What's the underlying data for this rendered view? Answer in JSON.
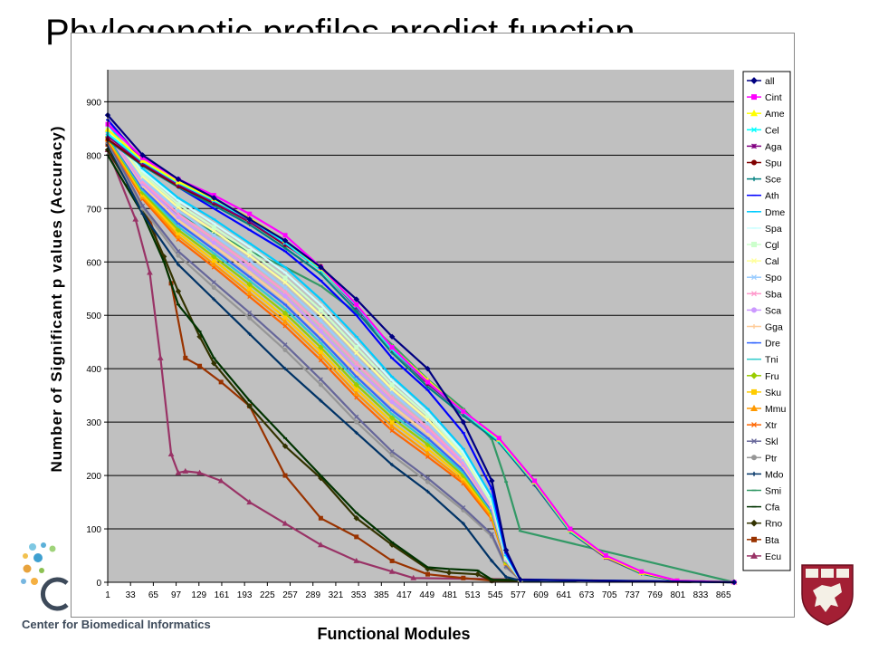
{
  "slide": {
    "title": "Phylogenetic profiles predict function",
    "footer_org": "Center for Biomedical Informatics"
  },
  "colors": {
    "plot_background": "#c0c0c0",
    "gridline": "#000000",
    "shield_red": "#a31f34"
  },
  "chart_data": {
    "type": "line",
    "title": "",
    "xlabel": "Functional Modules",
    "ylabel": "Number of Significant p values (Accuracy)",
    "ylim": [
      0,
      960
    ],
    "xlim": [
      1,
      880
    ],
    "yticks": [
      0,
      100,
      200,
      300,
      400,
      500,
      600,
      700,
      800,
      900
    ],
    "xticks": [
      1,
      33,
      65,
      97,
      129,
      161,
      193,
      225,
      257,
      289,
      321,
      353,
      385,
      417,
      449,
      481,
      513,
      545,
      577,
      609,
      641,
      673,
      705,
      737,
      769,
      801,
      833,
      865
    ],
    "grid": true,
    "legend_position": "right",
    "series": [
      {
        "name": "all",
        "color": "#000080",
        "marker": "diamond",
        "x": [
          1,
          50,
          100,
          150,
          200,
          250,
          300,
          350,
          400,
          450,
          500,
          540,
          560,
          580,
          880
        ],
        "y": [
          875,
          800,
          755,
          720,
          680,
          640,
          590,
          530,
          460,
          400,
          300,
          190,
          60,
          5,
          0
        ]
      },
      {
        "name": "Cint",
        "color": "#ff00ff",
        "marker": "square",
        "x": [
          1,
          50,
          100,
          150,
          200,
          250,
          300,
          350,
          400,
          450,
          500,
          550,
          600,
          650,
          700,
          750,
          800,
          880
        ],
        "y": [
          858,
          795,
          755,
          725,
          690,
          650,
          590,
          520,
          440,
          375,
          320,
          270,
          190,
          100,
          50,
          20,
          3,
          0
        ]
      },
      {
        "name": "Ame",
        "color": "#ffff00",
        "marker": "triangle",
        "x": [
          1,
          50,
          100,
          150,
          200,
          250,
          300,
          350,
          400,
          450,
          500,
          550,
          600,
          650,
          700,
          750,
          800,
          880
        ],
        "y": [
          848,
          790,
          750,
          718,
          682,
          640,
          588,
          520,
          440,
          378,
          320,
          268,
          188,
          98,
          48,
          18,
          3,
          0
        ]
      },
      {
        "name": "Cel",
        "color": "#00ffff",
        "marker": "x",
        "x": [
          1,
          50,
          100,
          150,
          200,
          250,
          300,
          350,
          400,
          450,
          500,
          550,
          600,
          650,
          700,
          750,
          800,
          880
        ],
        "y": [
          840,
          788,
          748,
          715,
          680,
          636,
          585,
          518,
          436,
          375,
          318,
          265,
          186,
          96,
          48,
          18,
          3,
          0
        ]
      },
      {
        "name": "Aga",
        "color": "#800080",
        "marker": "star",
        "x": [
          1,
          50,
          100,
          150,
          200,
          250,
          300,
          350,
          400,
          450,
          500,
          550,
          600,
          650,
          700,
          750,
          800,
          880
        ],
        "y": [
          836,
          785,
          745,
          712,
          676,
          634,
          586,
          515,
          438,
          372,
          317,
          266,
          184,
          96,
          46,
          18,
          3,
          0
        ]
      },
      {
        "name": "Spu",
        "color": "#800000",
        "marker": "circle",
        "x": [
          1,
          50,
          100,
          150,
          200,
          250,
          300,
          350,
          400,
          450,
          500,
          550,
          600,
          650,
          700,
          750,
          800,
          880
        ],
        "y": [
          830,
          782,
          742,
          710,
          675,
          632,
          592,
          518,
          436,
          372,
          318,
          268,
          188,
          98,
          48,
          18,
          3,
          0
        ]
      },
      {
        "name": "Sce",
        "color": "#008080",
        "marker": "plus",
        "x": [
          1,
          50,
          100,
          150,
          200,
          250,
          300,
          350,
          400,
          450,
          500,
          550,
          600,
          650,
          700,
          750,
          800,
          880
        ],
        "y": [
          828,
          780,
          740,
          706,
          670,
          626,
          578,
          508,
          430,
          366,
          312,
          262,
          182,
          94,
          46,
          16,
          2,
          0
        ]
      },
      {
        "name": "Ath",
        "color": "#0000ff",
        "marker": "dash",
        "x": [
          1,
          50,
          100,
          150,
          200,
          250,
          300,
          350,
          400,
          450,
          500,
          540,
          560,
          580,
          880
        ],
        "y": [
          866,
          790,
          740,
          700,
          660,
          620,
          565,
          500,
          420,
          360,
          280,
          175,
          55,
          5,
          0
        ]
      },
      {
        "name": "Dme",
        "color": "#00ccff",
        "marker": "dash",
        "x": [
          1,
          50,
          100,
          150,
          200,
          250,
          300,
          350,
          400,
          450,
          500,
          540,
          560,
          580,
          880
        ],
        "y": [
          858,
          775,
          720,
          680,
          635,
          590,
          530,
          460,
          385,
          325,
          250,
          160,
          50,
          5,
          0
        ]
      },
      {
        "name": "Spa",
        "color": "#ccffff",
        "marker": "dash",
        "x": [
          1,
          50,
          100,
          150,
          200,
          250,
          300,
          350,
          400,
          450,
          500,
          540,
          560,
          580,
          880
        ],
        "y": [
          855,
          770,
          715,
          672,
          628,
          580,
          520,
          450,
          378,
          318,
          244,
          155,
          48,
          5,
          0
        ]
      },
      {
        "name": "Cgl",
        "color": "#ccffcc",
        "marker": "square",
        "x": [
          1,
          50,
          100,
          150,
          200,
          250,
          300,
          350,
          400,
          450,
          500,
          540,
          560,
          580,
          880
        ],
        "y": [
          852,
          765,
          708,
          665,
          620,
          570,
          510,
          440,
          370,
          312,
          240,
          150,
          46,
          5,
          0
        ]
      },
      {
        "name": "Cal",
        "color": "#ffff99",
        "marker": "x",
        "x": [
          1,
          50,
          100,
          150,
          200,
          250,
          300,
          350,
          400,
          450,
          500,
          540,
          560,
          580,
          880
        ],
        "y": [
          850,
          760,
          702,
          658,
          612,
          562,
          500,
          430,
          362,
          305,
          235,
          148,
          45,
          5,
          0
        ]
      },
      {
        "name": "Spo",
        "color": "#99ccff",
        "marker": "x",
        "x": [
          1,
          50,
          100,
          150,
          200,
          250,
          300,
          350,
          400,
          450,
          500,
          540,
          560,
          580,
          880
        ],
        "y": [
          848,
          755,
          696,
          650,
          603,
          552,
          490,
          420,
          355,
          298,
          230,
          145,
          44,
          5,
          0
        ]
      },
      {
        "name": "Sba",
        "color": "#ff99cc",
        "marker": "x",
        "x": [
          1,
          50,
          100,
          150,
          200,
          250,
          300,
          350,
          400,
          450,
          500,
          540,
          560,
          580,
          880
        ],
        "y": [
          845,
          750,
          690,
          643,
          595,
          544,
          480,
          410,
          345,
          290,
          225,
          142,
          43,
          5,
          0
        ]
      },
      {
        "name": "Sca",
        "color": "#cc99ff",
        "marker": "circle",
        "x": [
          1,
          50,
          100,
          150,
          200,
          250,
          300,
          350,
          400,
          450,
          500,
          540,
          560,
          580,
          880
        ],
        "y": [
          842,
          746,
          684,
          636,
          588,
          536,
          470,
          400,
          338,
          284,
          220,
          140,
          42,
          5,
          0
        ]
      },
      {
        "name": "Gga",
        "color": "#ffcc99",
        "marker": "plus",
        "x": [
          1,
          50,
          100,
          150,
          200,
          250,
          300,
          350,
          400,
          450,
          500,
          540,
          560,
          580,
          880
        ],
        "y": [
          840,
          742,
          678,
          630,
          580,
          528,
          462,
          392,
          330,
          278,
          215,
          138,
          41,
          5,
          0
        ]
      },
      {
        "name": "Dre",
        "color": "#3366ff",
        "marker": "dash",
        "x": [
          1,
          50,
          100,
          150,
          200,
          250,
          300,
          350,
          400,
          450,
          500,
          540,
          560,
          580,
          880
        ],
        "y": [
          838,
          738,
          672,
          623,
          572,
          520,
          455,
          385,
          322,
          270,
          210,
          135,
          40,
          5,
          0
        ]
      },
      {
        "name": "Tni",
        "color": "#33cccc",
        "marker": "dash",
        "x": [
          1,
          50,
          100,
          150,
          200,
          250,
          300,
          350,
          400,
          450,
          500,
          540,
          560,
          580,
          880
        ],
        "y": [
          836,
          734,
          666,
          616,
          565,
          512,
          448,
          378,
          315,
          264,
          205,
          132,
          39,
          5,
          0
        ]
      },
      {
        "name": "Fru",
        "color": "#99cc00",
        "marker": "diamond",
        "x": [
          1,
          50,
          100,
          150,
          200,
          250,
          300,
          350,
          400,
          450,
          500,
          540,
          560,
          580,
          880
        ],
        "y": [
          834,
          730,
          660,
          610,
          558,
          504,
          440,
          370,
          308,
          258,
          200,
          130,
          38,
          5,
          0
        ]
      },
      {
        "name": "Sku",
        "color": "#ffcc00",
        "marker": "square",
        "x": [
          1,
          50,
          100,
          150,
          200,
          250,
          300,
          350,
          400,
          450,
          500,
          540,
          560,
          580,
          880
        ],
        "y": [
          832,
          726,
          654,
          603,
          550,
          496,
          432,
          362,
          300,
          250,
          195,
          126,
          37,
          5,
          0
        ]
      },
      {
        "name": "Mmu",
        "color": "#ff9900",
        "marker": "triangle",
        "x": [
          1,
          50,
          100,
          150,
          200,
          250,
          300,
          350,
          400,
          450,
          500,
          540,
          560,
          580,
          880
        ],
        "y": [
          830,
          722,
          648,
          596,
          542,
          488,
          424,
          354,
          292,
          242,
          190,
          122,
          36,
          5,
          0
        ]
      },
      {
        "name": "Xtr",
        "color": "#ff6600",
        "marker": "x",
        "x": [
          1,
          50,
          100,
          150,
          200,
          250,
          300,
          350,
          400,
          450,
          500,
          540,
          560,
          580,
          880
        ],
        "y": [
          828,
          718,
          642,
          590,
          535,
          480,
          416,
          346,
          284,
          235,
          185,
          118,
          35,
          5,
          0
        ]
      },
      {
        "name": "Skl",
        "color": "#666699",
        "marker": "x",
        "x": [
          1,
          50,
          100,
          150,
          200,
          250,
          300,
          350,
          400,
          450,
          500,
          540,
          560,
          580,
          880
        ],
        "y": [
          826,
          705,
          620,
          562,
          505,
          445,
          380,
          310,
          245,
          195,
          140,
          90,
          30,
          5,
          0
        ]
      },
      {
        "name": "Ptr",
        "color": "#969696",
        "marker": "circle",
        "x": [
          1,
          50,
          100,
          150,
          200,
          250,
          300,
          350,
          400,
          450,
          500,
          540,
          560,
          580,
          880
        ],
        "y": [
          824,
          700,
          612,
          552,
          495,
          435,
          370,
          300,
          238,
          188,
          135,
          86,
          28,
          5,
          0
        ]
      },
      {
        "name": "Mdo",
        "color": "#003366",
        "marker": "plus",
        "x": [
          1,
          50,
          100,
          150,
          200,
          250,
          300,
          350,
          400,
          450,
          500,
          540,
          560,
          580,
          880
        ],
        "y": [
          820,
          690,
          595,
          530,
          465,
          400,
          340,
          280,
          220,
          170,
          110,
          40,
          10,
          3,
          0
        ]
      },
      {
        "name": "Smi",
        "color": "#339966",
        "marker": "dash",
        "x": [
          1,
          50,
          100,
          150,
          200,
          250,
          300,
          350,
          400,
          450,
          500,
          540,
          560,
          580,
          880
        ],
        "y": [
          825,
          740,
          690,
          655,
          620,
          590,
          555,
          505,
          445,
          380,
          325,
          268,
          188,
          96,
          0
        ]
      },
      {
        "name": "Cfa",
        "color": "#003300",
        "marker": "dash",
        "x": [
          1,
          50,
          80,
          100,
          130,
          150,
          200,
          250,
          300,
          350,
          400,
          450,
          480,
          520,
          540,
          880
        ],
        "y": [
          800,
          690,
          600,
          520,
          470,
          420,
          340,
          270,
          200,
          130,
          75,
          28,
          25,
          22,
          5,
          0
        ]
      },
      {
        "name": "Rno",
        "color": "#333300",
        "marker": "diamond",
        "x": [
          1,
          50,
          80,
          100,
          130,
          150,
          200,
          250,
          300,
          350,
          400,
          450,
          480,
          520,
          540,
          880
        ],
        "y": [
          810,
          700,
          610,
          545,
          460,
          410,
          330,
          255,
          195,
          120,
          70,
          25,
          18,
          15,
          3,
          0
        ]
      },
      {
        "name": "Bta",
        "color": "#993300",
        "marker": "square",
        "x": [
          1,
          30,
          60,
          90,
          110,
          130,
          160,
          200,
          250,
          300,
          350,
          400,
          450,
          500,
          540,
          880
        ],
        "y": [
          820,
          745,
          680,
          560,
          420,
          405,
          375,
          330,
          200,
          120,
          85,
          40,
          15,
          8,
          3,
          0
        ]
      },
      {
        "name": "Ecu",
        "color": "#993366",
        "marker": "triangle",
        "x": [
          1,
          40,
          60,
          75,
          90,
          100,
          110,
          130,
          160,
          200,
          250,
          300,
          350,
          400,
          430,
          880
        ],
        "y": [
          810,
          680,
          580,
          420,
          240,
          205,
          208,
          205,
          190,
          150,
          110,
          70,
          40,
          20,
          8,
          0
        ]
      }
    ]
  }
}
